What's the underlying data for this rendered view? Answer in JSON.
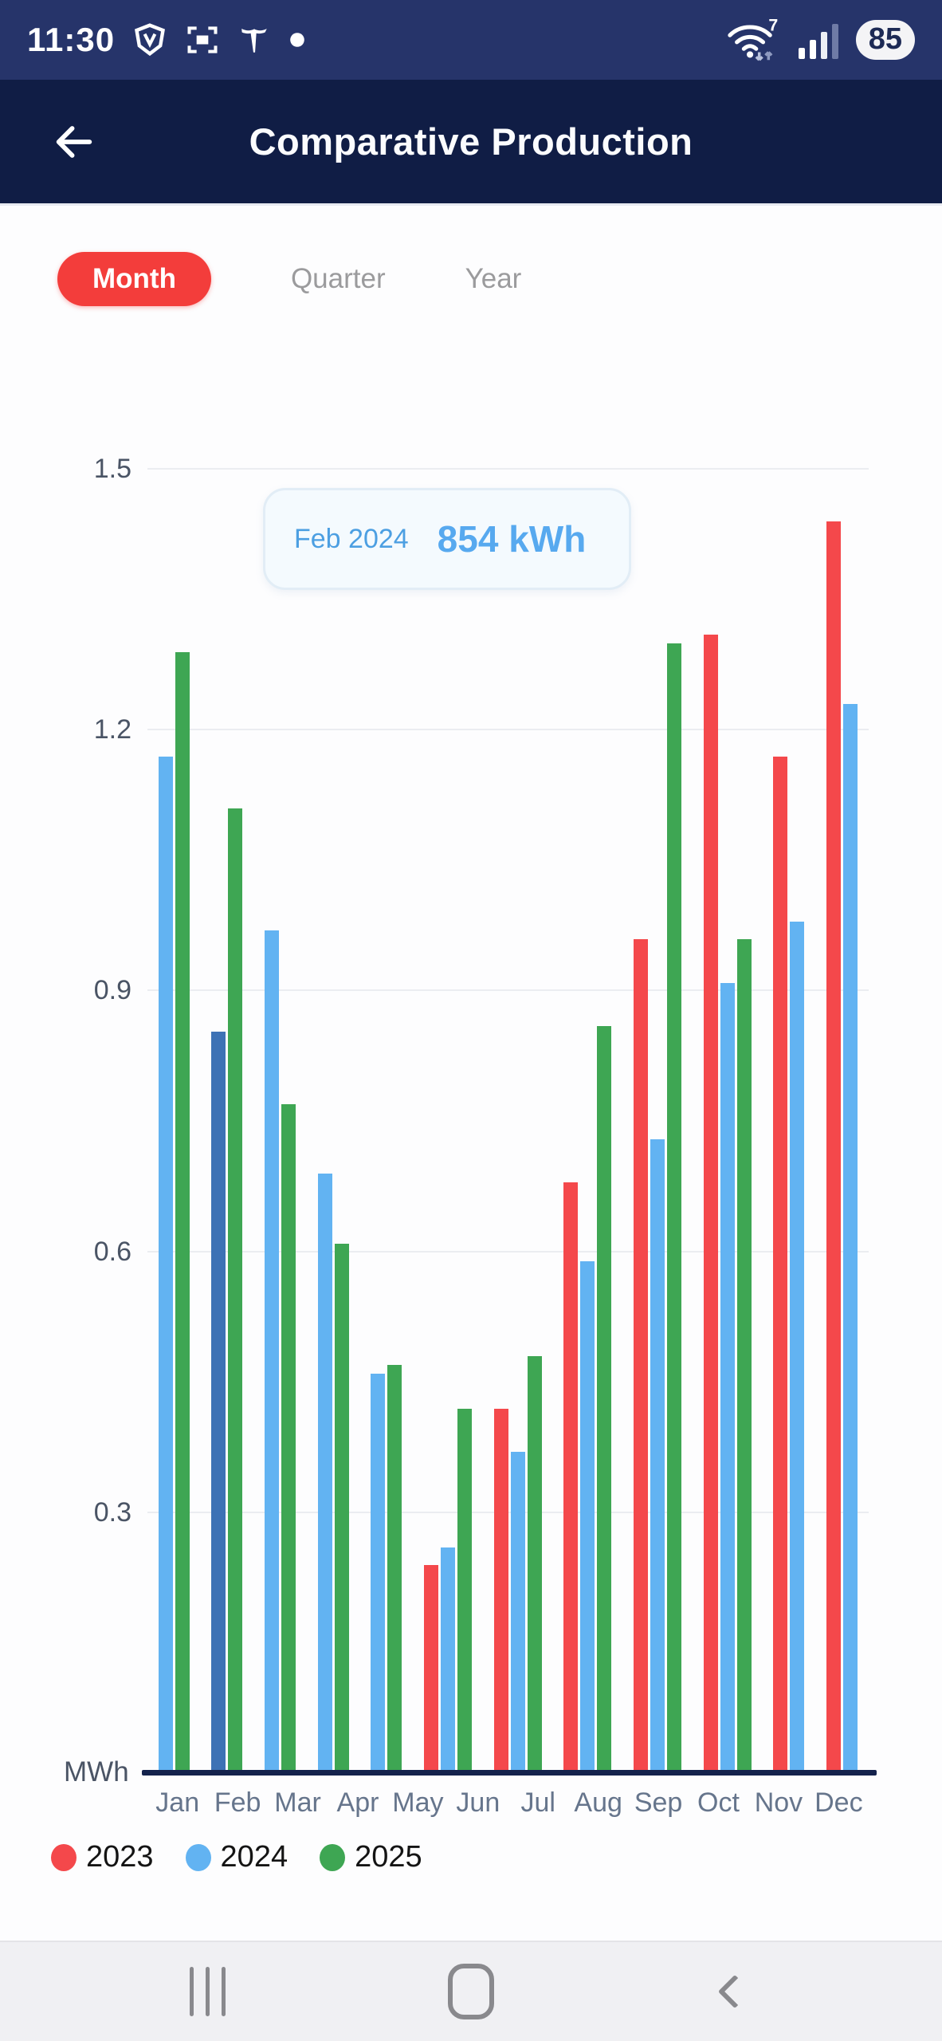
{
  "status_bar": {
    "time": "11:30",
    "wifi_generation": "7",
    "battery_percent": "85",
    "left_icons": [
      "vpn-shield-icon",
      "screenshot-icon",
      "tesla-icon",
      "notification-dot-icon"
    ],
    "right_icons": [
      "wifi-icon",
      "signal-strength-icon",
      "battery-indicator"
    ]
  },
  "header": {
    "title": "Comparative Production",
    "back_icon": "arrow-left-icon"
  },
  "tabs": [
    {
      "label": "Month",
      "active": true
    },
    {
      "label": "Quarter",
      "active": false
    },
    {
      "label": "Year",
      "active": false
    }
  ],
  "tooltip": {
    "period": "Feb 2024",
    "value": "854 kWh"
  },
  "chart_data": {
    "type": "bar",
    "title": "Comparative Production",
    "ylabel": "MWh",
    "ylim": [
      0,
      1.5
    ],
    "y_ticks": [
      0.3,
      0.6,
      0.9,
      1.2,
      1.5
    ],
    "grid": true,
    "legend_position": "bottom-left",
    "categories": [
      "Jan",
      "Feb",
      "Mar",
      "Apr",
      "May",
      "Jun",
      "Jul",
      "Aug",
      "Sep",
      "Oct",
      "Nov",
      "Dec"
    ],
    "series": [
      {
        "name": "2023",
        "color": "#F4484B",
        "values": [
          null,
          null,
          null,
          null,
          null,
          0.24,
          0.42,
          0.68,
          0.96,
          1.31,
          1.17,
          1.44
        ]
      },
      {
        "name": "2024",
        "color": "#62B3F2",
        "values": [
          1.17,
          0.854,
          0.97,
          0.69,
          0.46,
          0.26,
          0.37,
          0.59,
          0.73,
          0.91,
          0.98,
          1.23
        ]
      },
      {
        "name": "2025",
        "color": "#3EA653",
        "values": [
          1.29,
          1.11,
          0.77,
          0.61,
          0.47,
          0.42,
          0.48,
          0.86,
          1.3,
          0.96,
          null,
          null
        ]
      }
    ],
    "highlight": {
      "series": "2024",
      "category": "Feb",
      "color": "#3D72B5",
      "tooltip": "Feb 2024 854 kWh"
    }
  },
  "legend": [
    {
      "label": "2023",
      "color": "#F4484B"
    },
    {
      "label": "2024",
      "color": "#62B3F2"
    },
    {
      "label": "2025",
      "color": "#3EA653"
    }
  ],
  "nav_bar": {
    "icons": [
      "recents-icon",
      "home-icon",
      "back-icon"
    ]
  },
  "colors": {
    "status_bar_bg": "#26346A",
    "header_bg": "#101D45",
    "active_tab_bg": "#F33D3B",
    "axis_line": "#14224C",
    "tooltip_bg": "#F4FAFE",
    "tooltip_text": "#57A9EF"
  }
}
